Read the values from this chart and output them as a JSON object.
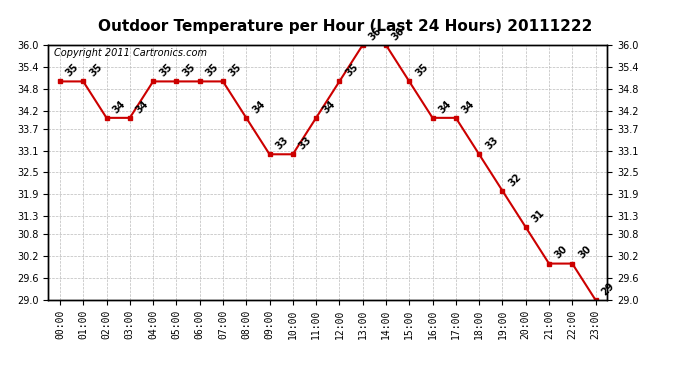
{
  "title": "Outdoor Temperature per Hour (Last 24 Hours) 20111222",
  "copyright_text": "Copyright 2011 Cartronics.com",
  "hours": [
    "00:00",
    "01:00",
    "02:00",
    "03:00",
    "04:00",
    "05:00",
    "06:00",
    "07:00",
    "08:00",
    "09:00",
    "10:00",
    "11:00",
    "12:00",
    "13:00",
    "14:00",
    "15:00",
    "16:00",
    "17:00",
    "18:00",
    "19:00",
    "20:00",
    "21:00",
    "22:00",
    "23:00"
  ],
  "temperatures": [
    35,
    35,
    34,
    34,
    35,
    35,
    35,
    35,
    34,
    33,
    33,
    34,
    35,
    36,
    36,
    35,
    34,
    34,
    33,
    32,
    31,
    30,
    30,
    29
  ],
  "line_color": "#cc0000",
  "marker_color": "#cc0000",
  "background_color": "#ffffff",
  "grid_color": "#bbbbbb",
  "ylim_min": 29.0,
  "ylim_max": 36.0,
  "yticks": [
    29.0,
    29.6,
    30.2,
    30.8,
    31.3,
    31.9,
    32.5,
    33.1,
    33.7,
    34.2,
    34.8,
    35.4,
    36.0
  ],
  "title_fontsize": 11,
  "label_fontsize": 7,
  "copyright_fontsize": 7,
  "tick_fontsize": 7
}
